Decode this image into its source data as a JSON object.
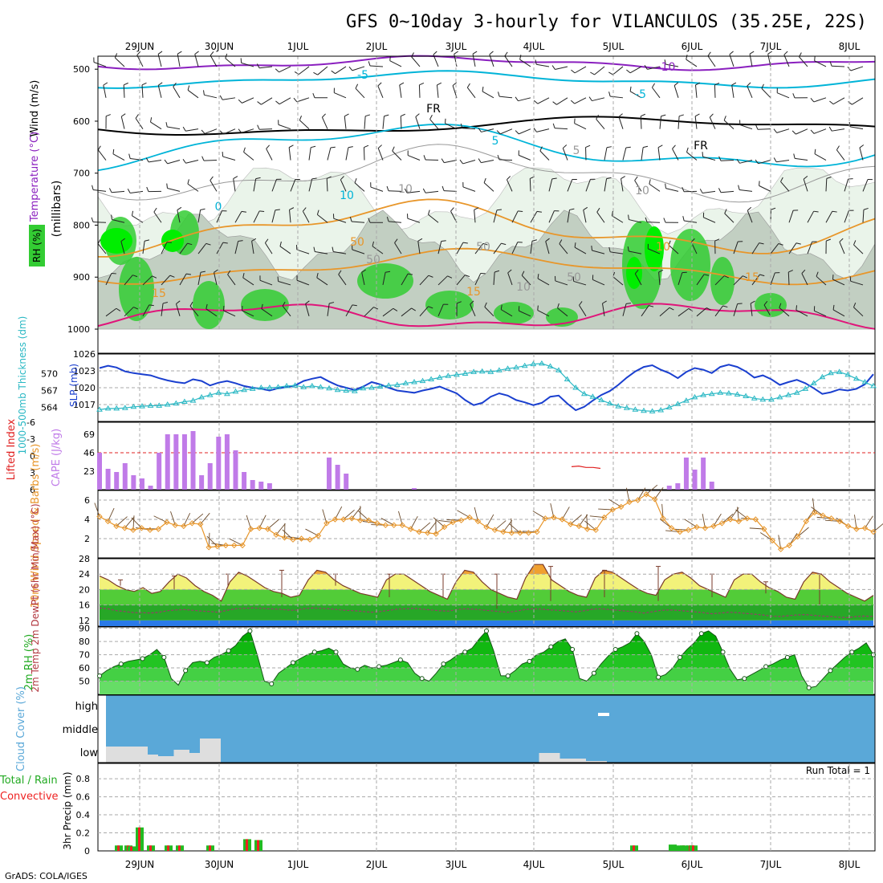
{
  "chart_data": {
    "type": "meteogram",
    "title": "GFS 0~10day 3-hourly for VILANCULOS (35.25E, 22S)",
    "credit": "GrADS: COLA/IGES",
    "dates": [
      "29JUN",
      "30JUN",
      "1JUL",
      "2JUL",
      "3JUL",
      "4JUL",
      "5JUL",
      "6JUL",
      "7JUL",
      "8JUL"
    ],
    "colors": {
      "rh_light": "#eaf4ea",
      "rh_mid": "#c2cfc2",
      "rh_green": "#33cc33",
      "rh_bright": "#00ee00",
      "temp_cyan": "#00b4d8",
      "temp_purple": "#8a1fbf",
      "temp_orange": "#e8962a",
      "temp_magenta": "#e0157a",
      "slp": "#1a3fcf",
      "thickness": "#2ab8c4",
      "cape": "#c07be8",
      "li": "#e02020",
      "wind": "#e8962a",
      "cloud": "#5aa8d8",
      "precip_total": "#22bb22",
      "precip_conv": "#ee2222"
    },
    "panels": [
      {
        "id": "upper-air",
        "ylabel": "(millibars)",
        "ylabel_parts": [
          "RH (%)",
          "Temperature (°C)",
          "Wind (m/s)"
        ],
        "yticks": [
          "500",
          "600",
          "700",
          "800",
          "900",
          "1000"
        ],
        "contour_labels": [
          "-10",
          "-5",
          "FR",
          "-5",
          "FR",
          "5",
          "0",
          "10",
          "5",
          "10",
          "50",
          "50",
          "50",
          "10",
          "15",
          "15",
          "10",
          "15",
          "50",
          "10"
        ]
      },
      {
        "id": "slp-thickness",
        "ylabel_left": "1000-500mb Thickness (dm)",
        "ylabel_right": "SLP (mb)",
        "ticks_left": [
          "570",
          "567",
          "564"
        ],
        "ticks_right": [
          "1026",
          "1023",
          "1020",
          "1017"
        ],
        "slp": [
          1023.5,
          1023.9,
          1023.6,
          1022.9,
          1022.6,
          1022.4,
          1022.2,
          1021.7,
          1021.3,
          1021.0,
          1020.8,
          1021.5,
          1021.2,
          1020.4,
          1020.9,
          1021.2,
          1020.8,
          1020.3,
          1020.0,
          1019.8,
          1019.5,
          1019.9,
          1020.1,
          1020.4,
          1021.2,
          1021.6,
          1021.9,
          1021.1,
          1020.4,
          1020.0,
          1019.6,
          1020.2,
          1021.0,
          1020.6,
          1020.0,
          1019.5,
          1019.3,
          1019.1,
          1019.5,
          1019.8,
          1020.2,
          1019.6,
          1019.0,
          1017.8,
          1016.9,
          1017.3,
          1018.4,
          1019.0,
          1018.6,
          1017.8,
          1017.4,
          1016.9,
          1017.3,
          1018.4,
          1018.6,
          1017.2,
          1016.0,
          1016.6,
          1017.7,
          1018.7,
          1019.4,
          1020.5,
          1021.8,
          1022.9,
          1023.7,
          1024.0,
          1023.2,
          1022.6,
          1021.7,
          1022.8,
          1023.5,
          1023.2,
          1022.6,
          1023.7,
          1024.1,
          1023.7,
          1022.9,
          1021.8,
          1022.2,
          1021.5,
          1020.5,
          1021.0,
          1021.4,
          1020.8,
          1019.9,
          1018.9,
          1019.2,
          1019.7,
          1019.5,
          1019.8,
          1020.6,
          1022.4
        ],
        "thickness": [
          563.6,
          563.8,
          563.8,
          563.9,
          564.1,
          564.2,
          564.3,
          564.3,
          564.5,
          564.7,
          565.0,
          565.2,
          565.8,
          566.2,
          566.6,
          566.4,
          566.8,
          567.1,
          567.3,
          567.5,
          567.5,
          567.6,
          567.8,
          567.9,
          567.6,
          567.8,
          567.6,
          567.4,
          567.1,
          567.0,
          566.9,
          567.4,
          567.5,
          567.7,
          567.9,
          568.0,
          568.3,
          568.5,
          568.7,
          569.0,
          569.3,
          569.6,
          569.8,
          570.0,
          570.3,
          570.4,
          570.3,
          570.6,
          570.9,
          571.1,
          571.4,
          571.7,
          571.8,
          571.3,
          570.6,
          569.0,
          567.5,
          566.4,
          565.9,
          565.3,
          564.7,
          564.2,
          563.9,
          563.6,
          563.4,
          563.3,
          563.5,
          564.0,
          564.6,
          565.2,
          565.8,
          566.2,
          566.4,
          566.6,
          566.5,
          566.3,
          566.0,
          565.6,
          565.4,
          565.4,
          565.8,
          566.2,
          566.6,
          567.3,
          568.3,
          569.4,
          570.1,
          570.3,
          569.8,
          569.1,
          568.5,
          567.8
        ]
      },
      {
        "id": "cape-li",
        "ylabel_left": "Lifted Index",
        "ylabel_right": "CAPE (J/kg)",
        "ticks_left": [
          "-6",
          "-3",
          "0",
          "3",
          "6"
        ],
        "ticks_right": [
          "69",
          "46",
          "23"
        ],
        "cape": [
          46,
          26,
          22,
          33,
          18,
          14,
          5,
          46,
          69,
          69,
          69,
          73,
          18,
          33,
          66,
          69,
          49,
          22,
          12,
          10,
          8,
          0,
          0,
          0,
          0,
          0,
          0,
          40,
          31,
          20,
          0,
          0,
          0,
          0,
          0,
          0,
          0,
          2,
          0,
          0,
          0,
          0,
          0,
          0,
          0,
          0,
          0,
          0,
          0,
          0,
          0,
          0,
          0,
          0,
          0,
          0,
          0,
          0,
          0,
          0,
          0,
          0,
          0,
          0,
          0,
          0,
          0,
          5,
          8,
          40,
          25,
          40,
          10,
          0,
          0,
          0,
          0,
          0,
          0,
          0,
          0,
          0,
          0,
          0,
          0,
          0,
          0,
          0,
          0,
          0,
          0,
          0
        ],
        "li_segment": [
          [
            4.6,
            5.2
          ],
          [
            4.65,
            5.0
          ],
          [
            4.7,
            5.4
          ],
          [
            4.8,
            5.4
          ],
          [
            4.9,
            5.7
          ]
        ]
      },
      {
        "id": "wind10m",
        "ylabel": "10m Wind Speed & Barbs (m/s)",
        "ticks": [
          "6",
          "4",
          "2"
        ],
        "speed": [
          4.3,
          3.8,
          3.3,
          3.1,
          2.9,
          3.1,
          2.9,
          3.0,
          3.7,
          3.4,
          3.3,
          3.6,
          3.5,
          1.1,
          1.2,
          1.3,
          1.3,
          1.3,
          3.0,
          3.1,
          3.0,
          2.4,
          2.1,
          1.9,
          2.0,
          1.9,
          2.3,
          3.6,
          4.0,
          4.0,
          4.1,
          3.9,
          3.9,
          3.6,
          3.4,
          3.4,
          3.4,
          3.0,
          2.7,
          2.6,
          2.5,
          3.2,
          3.7,
          3.9,
          4.2,
          3.8,
          3.2,
          2.9,
          2.7,
          2.6,
          2.6,
          2.6,
          2.7,
          4.1,
          4.2,
          4.0,
          3.5,
          3.3,
          3.0,
          2.9,
          4.2,
          5.0,
          5.3,
          5.8,
          6.0,
          6.6,
          6.1,
          4.1,
          3.1,
          2.7,
          2.9,
          3.2,
          3.1,
          3.3,
          3.6,
          4.0,
          3.8,
          4.1,
          4.0,
          3.0,
          1.8,
          0.9,
          1.3,
          2.2,
          3.8,
          4.7,
          4.4,
          4.1,
          3.8,
          3.3,
          3.0,
          3.1,
          2.7
        ]
      },
      {
        "id": "temp2m",
        "ylabel": "2m Temp 2m DewPt (6hr Min/Max) (°C)",
        "ticks": [
          "28",
          "24",
          "20",
          "16",
          "12"
        ],
        "temp": [
          23.5,
          22.5,
          21.0,
          20.0,
          19.5,
          20.5,
          19.0,
          19.5,
          22.0,
          24.0,
          23.0,
          21.0,
          19.5,
          18.5,
          17.0,
          22.0,
          24.5,
          23.5,
          22.0,
          20.5,
          19.5,
          19.0,
          18.0,
          18.5,
          22.5,
          25.0,
          24.5,
          22.5,
          21.0,
          20.0,
          19.0,
          18.5,
          18.0,
          22.5,
          24.0,
          24.0,
          22.5,
          21.0,
          19.5,
          18.5,
          17.5,
          22.0,
          25.0,
          24.5,
          22.0,
          20.0,
          19.0,
          18.0,
          17.5,
          23.0,
          26.5,
          26.5,
          22.5,
          21.0,
          19.5,
          18.5,
          18.0,
          23.0,
          25.0,
          24.5,
          23.0,
          21.5,
          20.0,
          19.0,
          18.5,
          22.5,
          24.0,
          24.5,
          23.0,
          21.0,
          20.0,
          19.0,
          18.0,
          22.5,
          24.0,
          24.0,
          22.0,
          20.5,
          19.5,
          18.0,
          17.5,
          22.0,
          24.5,
          24.0,
          22.0,
          20.5,
          19.0,
          18.0,
          17.0,
          18.5
        ],
        "dewpt": [
          15.2,
          15.0,
          14.5,
          14.3,
          14.0,
          14.0,
          13.9,
          14.1,
          14.5,
          14.7,
          14.8,
          14.6,
          14.4,
          14.3,
          14.1,
          14.6,
          15.0,
          15.1,
          15.2,
          15.1,
          15.0,
          14.9,
          14.7,
          14.6,
          15.0,
          15.2,
          15.1,
          15.0,
          14.8,
          14.6,
          14.5,
          14.3,
          14.1,
          14.3,
          14.6,
          14.9,
          15.0,
          15.1,
          14.9,
          14.7,
          14.5,
          14.4,
          14.8,
          15.0,
          14.9,
          14.7,
          14.5,
          14.3,
          14.1,
          14.4,
          14.8,
          15.0,
          14.9,
          14.7,
          14.6,
          14.4,
          14.2,
          14.5,
          14.9,
          15.0,
          14.8,
          14.6,
          14.4,
          14.2,
          13.9,
          14.2,
          14.6,
          14.7,
          14.6,
          14.4,
          14.2,
          14.0,
          13.7,
          13.9,
          14.1,
          14.0,
          13.8,
          13.6,
          13.4,
          13.1,
          13.0,
          13.2,
          13.4,
          13.5,
          13.3,
          13.1,
          13.0,
          12.8,
          12.7,
          13.0,
          13.1,
          13.0
        ],
        "max_min_bars": [
          [
            21,
            22.5
          ],
          [
            20,
            23.5
          ],
          [
            21,
            24
          ],
          [
            18,
            25
          ],
          [
            21,
            24
          ],
          [
            18,
            24
          ],
          [
            18,
            24
          ],
          [
            15,
            24
          ],
          [
            17,
            26
          ],
          [
            18,
            25
          ],
          [
            17,
            26
          ],
          [
            18,
            24
          ],
          [
            19,
            22
          ],
          [
            16,
            24
          ]
        ]
      },
      {
        "id": "rh2m",
        "ylabel": "2m RH (%)",
        "ticks": [
          "90",
          "80",
          "70",
          "60",
          "50"
        ],
        "rh": [
          54,
          58,
          61,
          63,
          65,
          66,
          67,
          70,
          74,
          68,
          52,
          47,
          58,
          64,
          65,
          64,
          68,
          70,
          73,
          77,
          84,
          88,
          70,
          50,
          48,
          56,
          60,
          64,
          67,
          70,
          72,
          73,
          75,
          72,
          63,
          60,
          59,
          62,
          60,
          61,
          62,
          64,
          66,
          64,
          56,
          52,
          50,
          56,
          63,
          66,
          70,
          72,
          75,
          82,
          88,
          73,
          54,
          54,
          58,
          63,
          65,
          70,
          72,
          76,
          80,
          82,
          74,
          52,
          50,
          56,
          63,
          69,
          74,
          76,
          79,
          86,
          80,
          70,
          53,
          55,
          60,
          68,
          74,
          79,
          86,
          88,
          84,
          72,
          59,
          51,
          52,
          55,
          58,
          61,
          63,
          66,
          68,
          70,
          54,
          45,
          46,
          52,
          58,
          63,
          68,
          72,
          75,
          79,
          70
        ]
      },
      {
        "id": "cloud",
        "ylabel": "Cloud Cover (%)",
        "levels": [
          "high",
          "middle",
          "low"
        ],
        "low_blocks": [
          [
            0,
            1.6,
            20
          ],
          [
            1.6,
            2.0,
            10
          ],
          [
            2.0,
            2.6,
            8
          ],
          [
            2.6,
            3.2,
            16
          ],
          [
            3.2,
            3.6,
            12
          ],
          [
            3.6,
            4.4,
            30
          ],
          [
            16.6,
            17.4,
            12
          ],
          [
            17.4,
            18.4,
            5
          ],
          [
            18.4,
            19.2,
            2
          ]
        ]
      },
      {
        "id": "precip",
        "ylabel": "3hr Precip (mm)",
        "legend": [
          "Total",
          "Rain",
          "Convective"
        ],
        "run_total_label": "Run Total = 1",
        "ticks": [
          "0.8",
          "0.6",
          "0.4",
          "0.2",
          "0"
        ],
        "bars": [
          [
            0.06,
            0.06
          ],
          [
            0.06,
            0.06
          ],
          [
            0.05,
            0.05
          ],
          [
            0.26,
            0.26
          ],
          [
            0.06,
            0.06
          ],
          [
            0.06,
            0.06
          ],
          [
            0.06,
            0.06
          ],
          [
            0.06,
            0.06
          ],
          [
            0.13,
            0.13
          ],
          [
            0.12,
            0.12
          ],
          [
            0.06,
            0.06
          ],
          [
            0.07,
            0.0
          ],
          [
            0.06,
            0.06
          ],
          [
            0.06,
            0.06
          ],
          [
            0.06,
            0.06
          ],
          [
            0.06,
            0.0
          ]
        ]
      }
    ]
  }
}
